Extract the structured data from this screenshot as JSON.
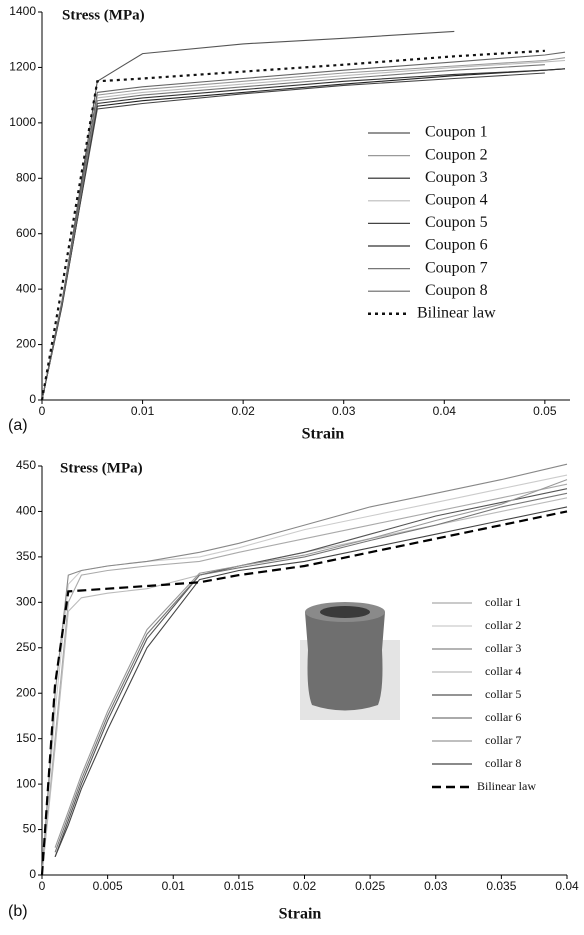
{
  "chart_data": [
    {
      "type": "line",
      "panel": "(a)",
      "y_label": "Stress (MPa)",
      "x_label": "Strain",
      "x": [
        0,
        0.002,
        0.0055,
        0.01,
        0.02,
        0.03,
        0.041,
        0.05,
        0.052
      ],
      "xlim": [
        0,
        0.0525
      ],
      "xticks": [
        0,
        0.01,
        0.02,
        0.03,
        0.04,
        0.05
      ],
      "ylim": [
        0,
        1400
      ],
      "yticks": [
        0,
        200,
        400,
        600,
        800,
        1000,
        1200,
        1400
      ],
      "grid": false,
      "series": [
        {
          "name": "Coupon 1",
          "color": "#555555",
          "dash": "solid",
          "values": [
            0,
            350,
            1150,
            1250,
            1285,
            1305,
            1330,
            null,
            null
          ]
        },
        {
          "name": "Coupon 2",
          "color": "#999999",
          "dash": "solid",
          "values": [
            0,
            360,
            1100,
            1120,
            1150,
            1180,
            1205,
            1225,
            1235
          ]
        },
        {
          "name": "Coupon 3",
          "color": "#222222",
          "dash": "solid",
          "values": [
            0,
            340,
            1060,
            1080,
            1110,
            1140,
            1170,
            1190,
            1195
          ]
        },
        {
          "name": "Coupon 4",
          "color": "#bbbbbb",
          "dash": "solid",
          "values": [
            0,
            355,
            1090,
            1110,
            1140,
            1170,
            1200,
            1220,
            1225
          ]
        },
        {
          "name": "Coupon 5",
          "color": "#444444",
          "dash": "solid",
          "values": [
            0,
            345,
            1050,
            1070,
            1105,
            1135,
            1160,
            1180,
            null
          ]
        },
        {
          "name": "Coupon 6",
          "color": "#333333",
          "dash": "solid",
          "values": [
            0,
            350,
            1070,
            1090,
            1120,
            1150,
            1175,
            1190,
            1195
          ]
        },
        {
          "name": "Coupon 7",
          "color": "#777777",
          "dash": "solid",
          "values": [
            0,
            352,
            1080,
            1100,
            1130,
            1160,
            1190,
            1210,
            null
          ]
        },
        {
          "name": "Coupon 8",
          "color": "#666666",
          "dash": "solid",
          "values": [
            0,
            358,
            1110,
            1130,
            1160,
            1190,
            1220,
            1245,
            1255
          ]
        },
        {
          "name": "Bilinear law",
          "color": "#111111",
          "dash": "dotted",
          "values": [
            0,
            410,
            1150,
            1160,
            1185,
            1210,
            1240,
            1260,
            null
          ]
        }
      ]
    },
    {
      "type": "line",
      "panel": "(b)",
      "y_label": "Stress (MPa)",
      "x_label": "Strain",
      "x": [
        0,
        0.001,
        0.002,
        0.003,
        0.005,
        0.008,
        0.012,
        0.015,
        0.02,
        0.025,
        0.03,
        0.035,
        0.04
      ],
      "xlim": [
        0,
        0.04
      ],
      "xticks": [
        0,
        0.005,
        0.01,
        0.015,
        0.02,
        0.025,
        0.03,
        0.035,
        0.04
      ],
      "ylim": [
        0,
        450
      ],
      "yticks": [
        0,
        50,
        100,
        150,
        200,
        250,
        300,
        350,
        400,
        450
      ],
      "grid": false,
      "series": [
        {
          "name": "collar 1",
          "color": "#aaaaaa",
          "dash": "solid",
          "values": [
            0,
            150,
            300,
            330,
            335,
            340,
            345,
            355,
            370,
            385,
            400,
            415,
            430
          ]
        },
        {
          "name": "collar 2",
          "color": "#cccccc",
          "dash": "solid",
          "values": [
            0,
            180,
            320,
            335,
            340,
            345,
            350,
            360,
            380,
            395,
            410,
            425,
            440
          ]
        },
        {
          "name": "collar 3",
          "color": "#888888",
          "dash": "solid",
          "values": [
            0,
            200,
            330,
            335,
            340,
            345,
            355,
            365,
            385,
            405,
            420,
            435,
            452
          ]
        },
        {
          "name": "collar 4",
          "color": "#bbbbbb",
          "dash": "solid",
          "values": [
            0,
            140,
            290,
            305,
            310,
            315,
            330,
            340,
            355,
            370,
            385,
            400,
            415
          ]
        },
        {
          "name": "collar 5",
          "color": "#555555",
          "dash": "solid",
          "values": [
            null,
            20,
            60,
            100,
            170,
            260,
            330,
            340,
            355,
            375,
            395,
            410,
            425
          ]
        },
        {
          "name": "collar 6",
          "color": "#777777",
          "dash": "solid",
          "values": [
            null,
            25,
            65,
            105,
            175,
            265,
            330,
            338,
            350,
            368,
            385,
            405,
            420
          ]
        },
        {
          "name": "collar 7",
          "color": "#999999",
          "dash": "solid",
          "values": [
            null,
            30,
            70,
            110,
            180,
            270,
            332,
            340,
            352,
            370,
            390,
            408,
            435
          ]
        },
        {
          "name": "collar 8",
          "color": "#444444",
          "dash": "solid",
          "values": [
            null,
            20,
            55,
            95,
            160,
            250,
            325,
            335,
            345,
            360,
            375,
            390,
            405
          ]
        },
        {
          "name": "Bilinear law",
          "color": "#000000",
          "dash": "dashed",
          "values": [
            0,
            210,
            312,
            313,
            315,
            318,
            322,
            330,
            340,
            355,
            370,
            385,
            400
          ]
        }
      ]
    }
  ]
}
